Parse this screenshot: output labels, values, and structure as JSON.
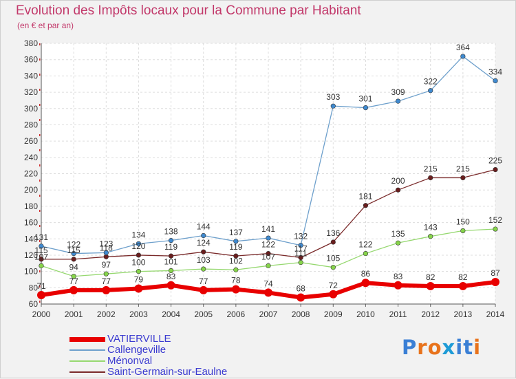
{
  "header": {
    "title": "Evolution des Impôts locaux pour la Commune par Habitant",
    "subtitle": "(en € et par an)"
  },
  "logo": {
    "text": "Proxiti",
    "letters": [
      "P",
      "r",
      "o",
      "x",
      "i",
      "t",
      "i"
    ],
    "letter_colors": [
      "#3a7fd5",
      "#e8731c",
      "#e8731c",
      "#1e9bd6",
      "#3a7fd5",
      "#3a7fd5",
      "#e8731c"
    ]
  },
  "chart_data": {
    "type": "line",
    "title": "Evolution des Impôts locaux pour la Commune par Habitant",
    "subtitle": "(en € et par an)",
    "x": [
      "2000",
      "2001",
      "2002",
      "2003",
      "2004",
      "2005",
      "2006",
      "2007",
      "2008",
      "2009",
      "2010",
      "2011",
      "2012",
      "2013",
      "2014"
    ],
    "ylim": [
      60,
      380
    ],
    "yticks": [
      60,
      80,
      100,
      120,
      140,
      160,
      180,
      200,
      220,
      240,
      260,
      280,
      300,
      320,
      340,
      360,
      380
    ],
    "grid": true,
    "legend_position": "bottom-left",
    "series": [
      {
        "name": "VATIERVILLE",
        "color": "#e80000",
        "width": 6,
        "marker_r": 6,
        "values": [
          71,
          77,
          77,
          79,
          83,
          77,
          78,
          74,
          68,
          72,
          86,
          83,
          82,
          82,
          87
        ],
        "labels": [
          "71",
          "77",
          "77",
          "79",
          "83",
          "77",
          "78",
          "74",
          "68",
          "72",
          "86",
          "83",
          "82",
          "82",
          "87"
        ]
      },
      {
        "name": "Callengeville",
        "color": "#6ea0cc",
        "marker": "#3f8ad0",
        "width": 1.3,
        "marker_r": 3.3,
        "values": [
          131,
          122,
          123,
          134,
          138,
          144,
          137,
          141,
          132,
          303,
          301,
          309,
          322,
          364,
          334
        ],
        "labels": [
          "131",
          "122",
          "123",
          "134",
          "138",
          "144",
          "137",
          "141",
          "132",
          "303",
          "301",
          "309",
          "322",
          "364",
          "334"
        ]
      },
      {
        "name": "Ménonval",
        "color": "#96d870",
        "marker": "#86d44a",
        "width": 1.3,
        "marker_r": 3.3,
        "values": [
          107,
          94,
          97,
          100,
          101,
          103,
          102,
          107,
          111,
          105,
          122,
          135,
          143,
          150,
          152
        ],
        "labels": [
          "107",
          "94",
          "97",
          "100",
          "101",
          "103",
          "102",
          "107",
          "111",
          "105",
          "122",
          "135",
          "143",
          "150",
          "152"
        ]
      },
      {
        "name": "Saint-Germain-sur-Eaulne",
        "color": "#7a2a2a",
        "marker": "#6a1e1e",
        "width": 1.3,
        "marker_r": 3.3,
        "values": [
          115,
          115,
          118,
          120,
          119,
          124,
          119,
          122,
          117,
          136,
          181,
          200,
          215,
          215,
          225
        ],
        "labels": [
          "115",
          "115",
          "118",
          "120",
          "119",
          "124",
          "119",
          "122",
          "117",
          "136",
          "181",
          "200",
          "215",
          "215",
          "225"
        ]
      }
    ]
  }
}
